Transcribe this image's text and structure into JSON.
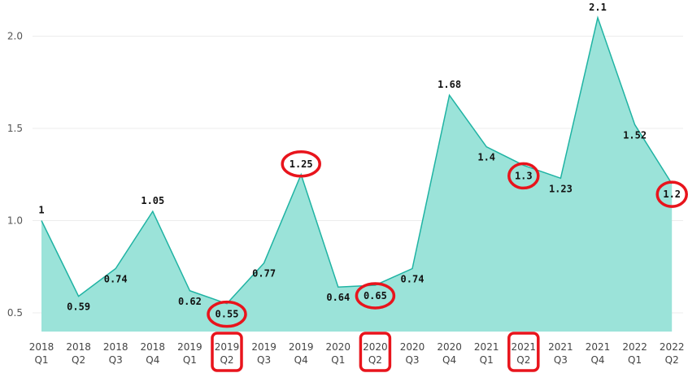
{
  "chart_data": {
    "type": "area",
    "title": "",
    "xlabel": "",
    "ylabel": "",
    "ylim": [
      0.4,
      2.15
    ],
    "y_ticks": [
      "0.5",
      "1.0",
      "1.5",
      "2.0"
    ],
    "grid": "horizontal",
    "legend": "none",
    "categories": [
      {
        "year": "2018",
        "quarter": "Q1"
      },
      {
        "year": "2018",
        "quarter": "Q2"
      },
      {
        "year": "2018",
        "quarter": "Q3"
      },
      {
        "year": "2018",
        "quarter": "Q4"
      },
      {
        "year": "2019",
        "quarter": "Q1"
      },
      {
        "year": "2019",
        "quarter": "Q2"
      },
      {
        "year": "2019",
        "quarter": "Q3"
      },
      {
        "year": "2019",
        "quarter": "Q4"
      },
      {
        "year": "2020",
        "quarter": "Q1"
      },
      {
        "year": "2020",
        "quarter": "Q2"
      },
      {
        "year": "2020",
        "quarter": "Q3"
      },
      {
        "year": "2020",
        "quarter": "Q4"
      },
      {
        "year": "2021",
        "quarter": "Q1"
      },
      {
        "year": "2021",
        "quarter": "Q2"
      },
      {
        "year": "2021",
        "quarter": "Q3"
      },
      {
        "year": "2021",
        "quarter": "Q4"
      },
      {
        "year": "2022",
        "quarter": "Q1"
      },
      {
        "year": "2022",
        "quarter": "Q2"
      }
    ],
    "values": [
      1,
      0.59,
      0.74,
      1.05,
      0.62,
      0.55,
      0.77,
      1.25,
      0.64,
      0.65,
      0.74,
      1.68,
      1.4,
      1.3,
      1.23,
      2.1,
      1.52,
      1.2
    ],
    "data_labels": [
      "1",
      "0.59",
      "0.74",
      "1.05",
      "0.62",
      "0.55",
      "0.77",
      "1.25",
      "0.64",
      "0.65",
      "0.74",
      "1.68",
      "1.4",
      "1.3",
      "1.23",
      "2.1",
      "1.52",
      "1.2"
    ],
    "highlighted_value_indices": [
      5,
      7,
      9,
      13,
      17
    ],
    "highlighted_category_indices": [
      5,
      9,
      13
    ],
    "colors": {
      "area_fill": "#9be3d9",
      "line": "#1fb3a3",
      "gridline": "#ececec",
      "highlight": "#e8141c",
      "label": "#111111",
      "tick": "#555555"
    }
  }
}
